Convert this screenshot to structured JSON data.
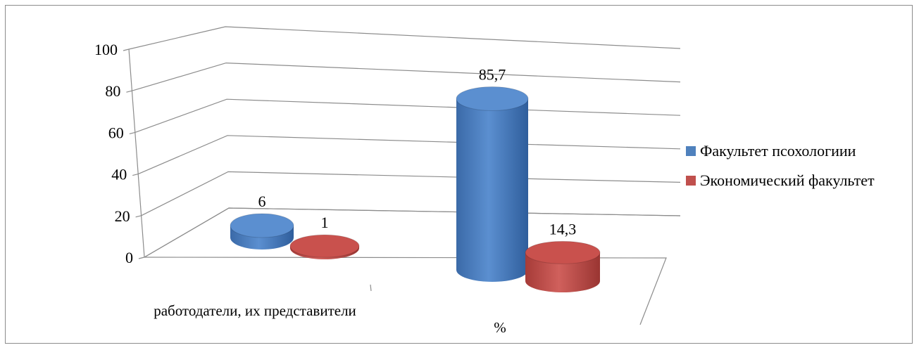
{
  "chart_data": {
    "type": "bar",
    "style": "3d-cylinder",
    "categories": [
      "работодатели, их представители",
      "%"
    ],
    "series": [
      {
        "name": "Факультет псохологиии",
        "values": [
          6,
          85.7
        ],
        "labels": [
          "6",
          "85,7"
        ],
        "color": "#4f81bd"
      },
      {
        "name": "Экономический факультет",
        "values": [
          1,
          14.3
        ],
        "labels": [
          "1",
          "14,3"
        ],
        "color": "#c0504d"
      }
    ],
    "yticks": [
      "0",
      "20",
      "40",
      "60",
      "80",
      "100"
    ],
    "ylim": [
      0,
      100
    ],
    "grid": true,
    "legend_position": "right"
  }
}
